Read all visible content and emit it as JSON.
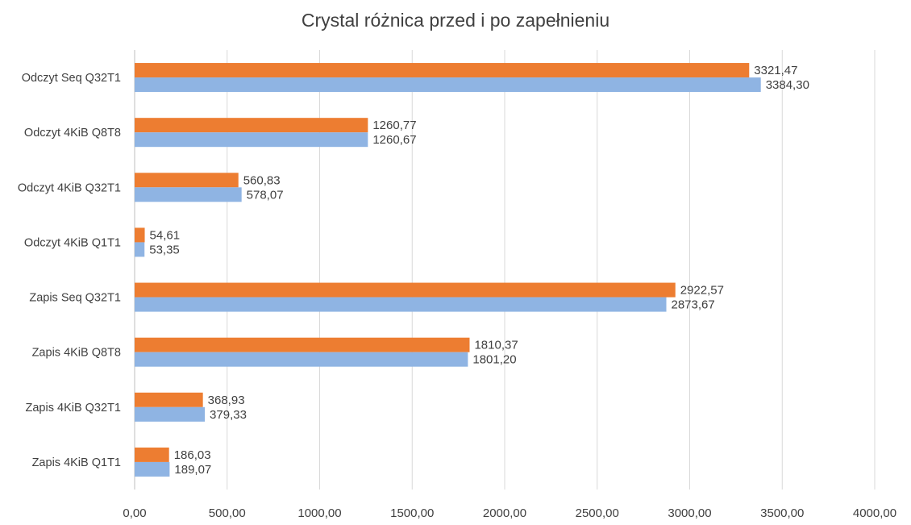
{
  "chart_data": {
    "type": "bar",
    "orientation": "horizontal",
    "title": "Crystal różnica przed i po zapełnieniu",
    "categories": [
      "Odczyt Seq Q32T1",
      "Odczyt 4KiB Q8T8",
      "Odczyt 4KiB Q32T1",
      "Odczyt 4KiB Q1T1",
      "Zapis Seq Q32T1",
      "Zapis 4KiB Q8T8",
      "Zapis 4KiB Q32T1",
      "Zapis 4KiB Q1T1"
    ],
    "series": [
      {
        "color": "#ED7D31",
        "values": [
          3321.47,
          1260.77,
          560.83,
          54.61,
          2922.57,
          1810.37,
          368.93,
          186.03
        ],
        "labels": [
          "3321,47",
          "1260,77",
          "560,83",
          "54,61",
          "2922,57",
          "1810,37",
          "368,93",
          "186,03"
        ]
      },
      {
        "color": "#8FB4E3",
        "values": [
          3384.3,
          1260.67,
          578.07,
          53.35,
          2873.67,
          1801.2,
          379.33,
          189.07
        ],
        "labels": [
          "3384,30",
          "1260,67",
          "578,07",
          "53,35",
          "2873,67",
          "1801,20",
          "379,33",
          "189,07"
        ]
      }
    ],
    "xlim": [
      0,
      4000
    ],
    "xticks": [
      "0,00",
      "500,00",
      "1000,00",
      "1500,00",
      "2000,00",
      "2500,00",
      "3000,00",
      "3500,00",
      "4000,00"
    ],
    "grid": true,
    "legend": "none"
  }
}
